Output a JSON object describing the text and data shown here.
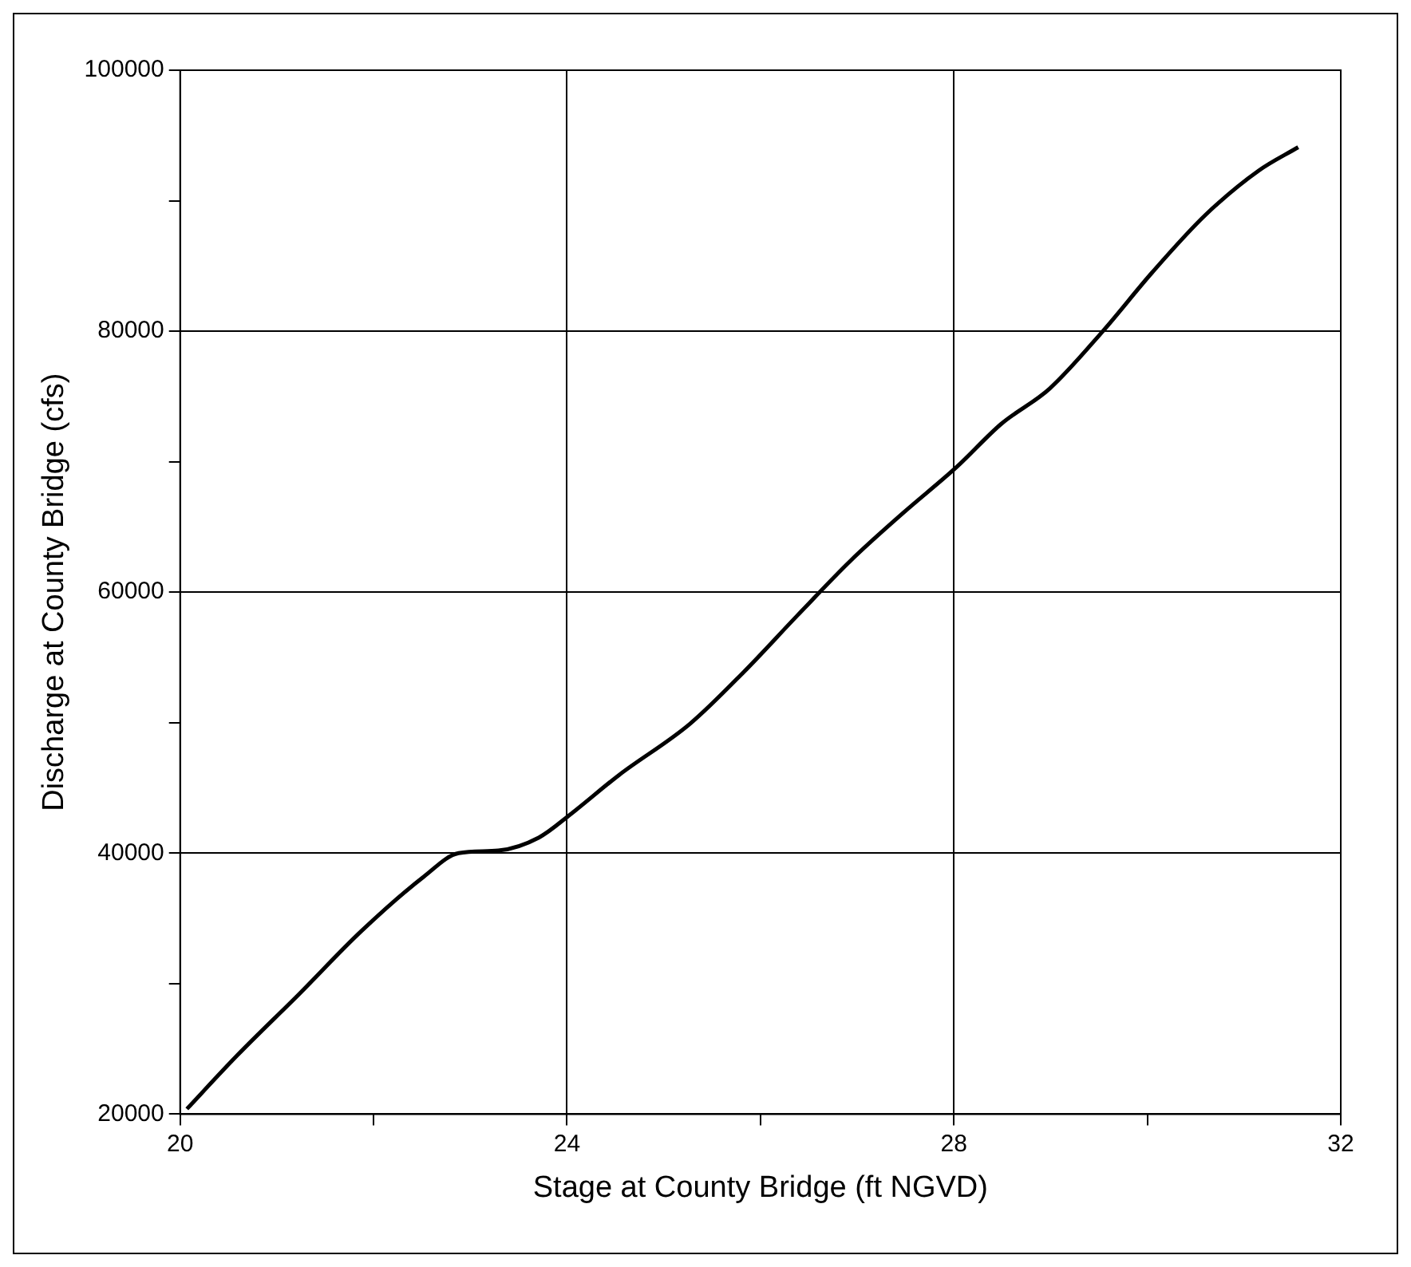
{
  "chart_data": {
    "type": "line",
    "xlabel": "Stage at County Bridge (ft NGVD)",
    "ylabel": "Discharge at County Bridge (cfs)",
    "x": [
      20.07,
      20.59,
      21.23,
      21.87,
      22.52,
      22.88,
      23.29,
      23.71,
      24.04,
      24.54,
      25.27,
      25.83,
      26.38,
      26.93,
      27.48,
      28.03,
      28.49,
      28.99,
      29.54,
      30.05,
      30.6,
      31.15,
      31.56
    ],
    "series": [
      {
        "color": "#000000",
        "values": [
          20400,
          24500,
          29200,
          34000,
          38200,
          40000,
          40200,
          41200,
          43000,
          46000,
          49900,
          53900,
          58200,
          62400,
          66100,
          69600,
          72900,
          75600,
          80000,
          84500,
          88900,
          92300,
          94100
        ]
      }
    ],
    "xlim": [
      20,
      32
    ],
    "xticks": [
      20,
      {
        "value": 22,
        "label": null
      },
      24,
      {
        "value": 26,
        "label": null
      },
      28,
      {
        "value": 30,
        "label": null
      },
      32
    ],
    "ylim": [
      20000,
      100000
    ],
    "yticks": [
      20000,
      {
        "value": 30000,
        "label": null
      },
      40000,
      {
        "value": 50000,
        "label": null
      },
      60000,
      {
        "value": 70000,
        "label": null
      },
      80000,
      {
        "value": 90000,
        "label": null
      },
      100000
    ],
    "grid": true,
    "legend": false,
    "marker": "none",
    "line_style": "solid"
  }
}
